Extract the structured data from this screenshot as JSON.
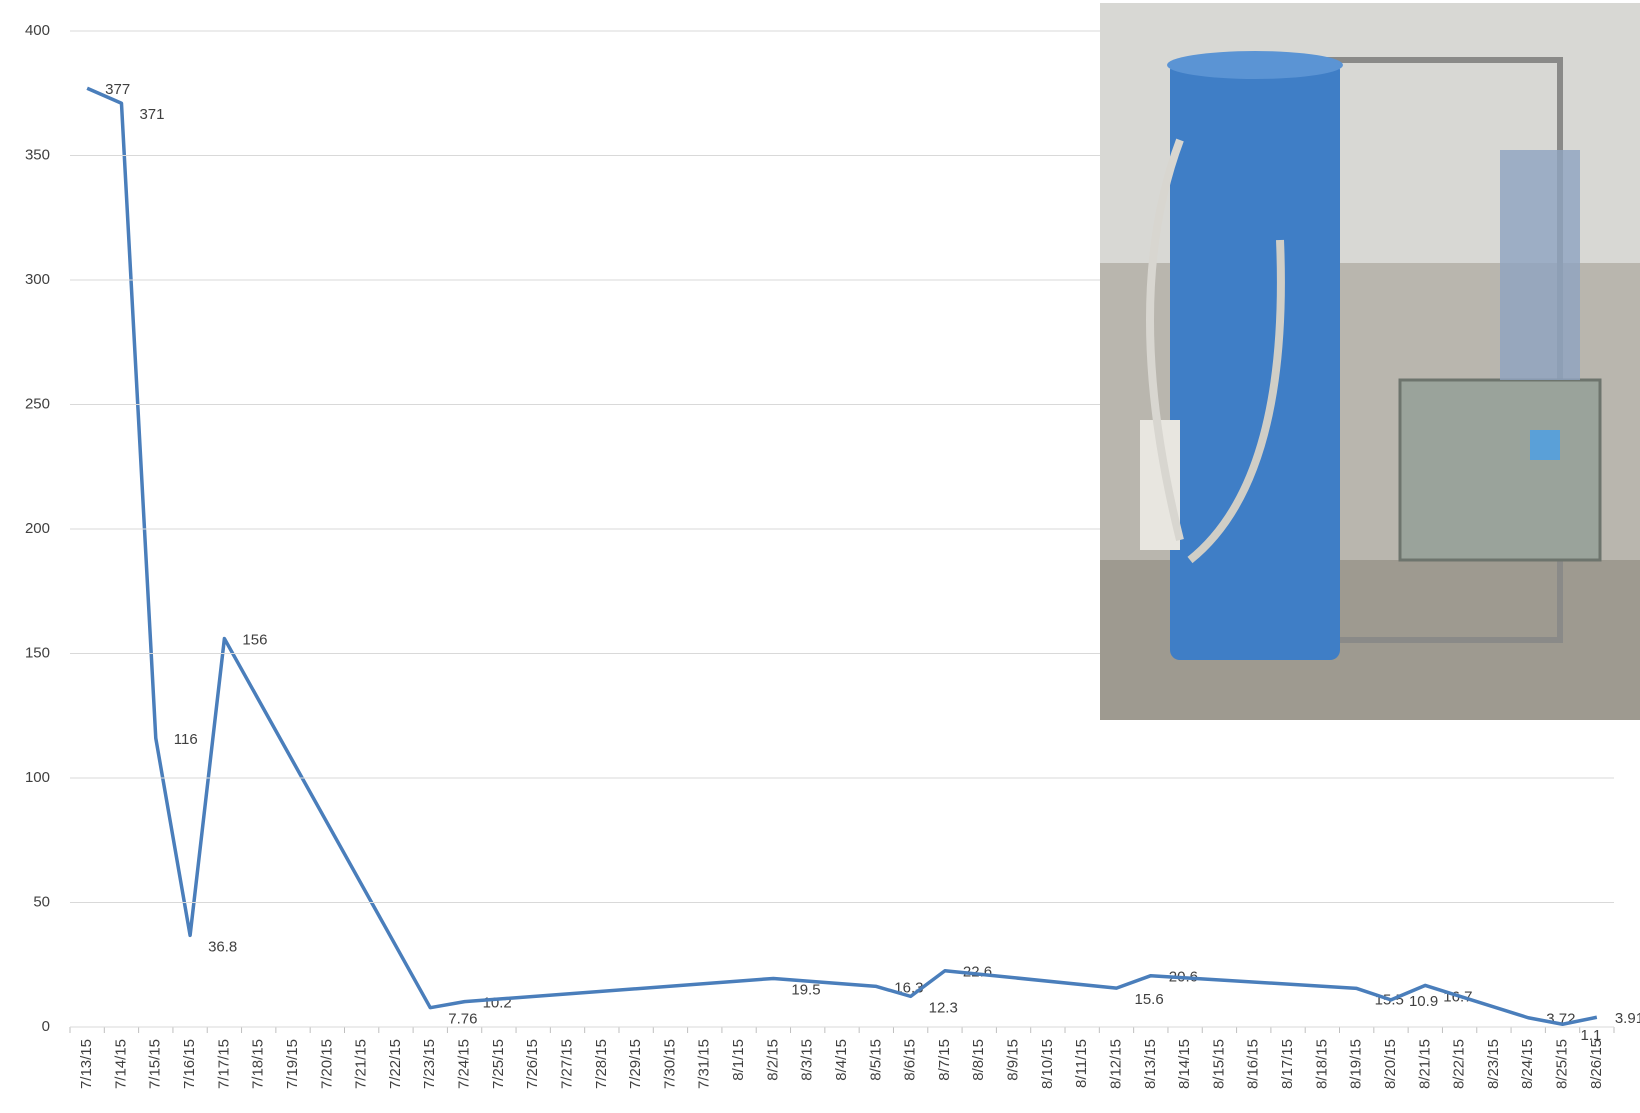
{
  "chart_data": {
    "type": "line",
    "categories": [
      "7/13/15",
      "7/14/15",
      "7/15/15",
      "7/16/15",
      "7/17/15",
      "7/18/15",
      "7/19/15",
      "7/20/15",
      "7/21/15",
      "7/22/15",
      "7/23/15",
      "7/24/15",
      "7/25/15",
      "7/26/15",
      "7/27/15",
      "7/28/15",
      "7/29/15",
      "7/30/15",
      "7/31/15",
      "8/1/15",
      "8/2/15",
      "8/3/15",
      "8/4/15",
      "8/5/15",
      "8/6/15",
      "8/7/15",
      "8/8/15",
      "8/9/15",
      "8/10/15",
      "8/11/15",
      "8/12/15",
      "8/13/15",
      "8/14/15",
      "8/15/15",
      "8/16/15",
      "8/17/15",
      "8/18/15",
      "8/19/15",
      "8/20/15",
      "8/21/15",
      "8/22/15",
      "8/23/15",
      "8/24/15",
      "8/25/15",
      "8/26/15"
    ],
    "series": [
      {
        "color": "#4a7ebb",
        "x": [
          "7/13/15",
          "7/14/15",
          "7/15/15",
          "7/16/15",
          "7/17/15",
          "7/23/15",
          "7/24/15",
          "8/2/15",
          "8/5/15",
          "8/6/15",
          "8/7/15",
          "8/12/15",
          "8/13/15",
          "8/19/15",
          "8/20/15",
          "8/21/15",
          "8/24/15",
          "8/25/15",
          "8/26/15"
        ],
        "values": [
          377,
          371,
          116,
          36.8,
          156,
          7.76,
          10.2,
          19.5,
          16.3,
          12.3,
          22.6,
          15.6,
          20.6,
          15.5,
          10.9,
          16.7,
          3.72,
          1.1,
          3.91
        ]
      }
    ],
    "ylim": [
      0,
      400
    ],
    "yticks": [
      0,
      50,
      100,
      150,
      200,
      250,
      300,
      350,
      400
    ],
    "grid": true
  }
}
